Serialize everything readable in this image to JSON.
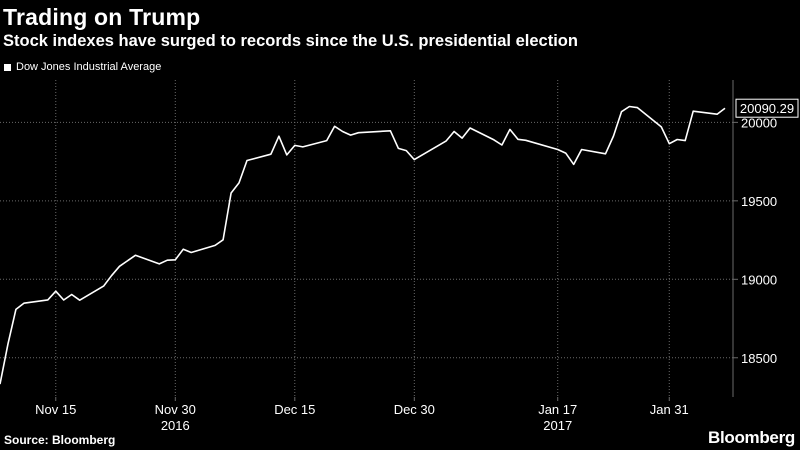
{
  "header": {
    "title": "Trading on Trump",
    "subtitle": "Stock indexes have surged to records since the U.S. presidential election"
  },
  "footer": {
    "source": "Source: Bloomberg",
    "brand": "Bloomberg"
  },
  "colors": {
    "background": "#000000",
    "line": "#ffffff",
    "grid": "#6a6a6a"
  },
  "chart_data": {
    "type": "line",
    "title": "Trading on Trump",
    "subtitle": "Stock indexes have surged to records since the U.S. presidential election",
    "xlabel": "",
    "ylabel": "",
    "grid": true,
    "legend": "top-left",
    "last_value_label": "20090.29",
    "ylim": [
      18250,
      20270
    ],
    "y_ticks": [
      18500,
      19000,
      19500,
      20000
    ],
    "x_ticks": [
      {
        "date": "2016-11-15",
        "label": "Nov 15"
      },
      {
        "date": "2016-11-30",
        "label": "Nov 30"
      },
      {
        "date": "2016-12-15",
        "label": "Dec 15"
      },
      {
        "date": "2016-12-30",
        "label": "Dec 30"
      },
      {
        "date": "2017-01-17",
        "label": "Jan 17"
      },
      {
        "date": "2017-01-31",
        "label": "Jan 31"
      }
    ],
    "year_labels": [
      {
        "date": "2016-11-30",
        "label": "2016"
      },
      {
        "date": "2017-01-17",
        "label": "2017"
      }
    ],
    "x": [
      "2016-11-08",
      "2016-11-09",
      "2016-11-10",
      "2016-11-11",
      "2016-11-14",
      "2016-11-15",
      "2016-11-16",
      "2016-11-17",
      "2016-11-18",
      "2016-11-21",
      "2016-11-22",
      "2016-11-23",
      "2016-11-25",
      "2016-11-28",
      "2016-11-29",
      "2016-11-30",
      "2016-12-01",
      "2016-12-02",
      "2016-12-05",
      "2016-12-06",
      "2016-12-07",
      "2016-12-08",
      "2016-12-09",
      "2016-12-12",
      "2016-12-13",
      "2016-12-14",
      "2016-12-15",
      "2016-12-16",
      "2016-12-19",
      "2016-12-20",
      "2016-12-21",
      "2016-12-22",
      "2016-12-23",
      "2016-12-27",
      "2016-12-28",
      "2016-12-29",
      "2016-12-30",
      "2017-01-03",
      "2017-01-04",
      "2017-01-05",
      "2017-01-06",
      "2017-01-09",
      "2017-01-10",
      "2017-01-11",
      "2017-01-12",
      "2017-01-13",
      "2017-01-17",
      "2017-01-18",
      "2017-01-19",
      "2017-01-20",
      "2017-01-23",
      "2017-01-24",
      "2017-01-25",
      "2017-01-26",
      "2017-01-27",
      "2017-01-30",
      "2017-01-31",
      "2017-02-01",
      "2017-02-02",
      "2017-02-03",
      "2017-02-06",
      "2017-02-07"
    ],
    "series": [
      {
        "name": "Dow Jones Industrial Average",
        "color": "#ffffff",
        "values": [
          18332,
          18589,
          18808,
          18848,
          18869,
          18924,
          18868,
          18903,
          18867,
          18957,
          19023,
          19083,
          19153,
          19098,
          19122,
          19124,
          19192,
          19171,
          19216,
          19252,
          19550,
          19614,
          19757,
          19797,
          19912,
          19793,
          19853,
          19844,
          19884,
          19975,
          19942,
          19919,
          19934,
          19946,
          19834,
          19820,
          19763,
          19882,
          19942,
          19900,
          19964,
          19888,
          19856,
          19955,
          19892,
          19886,
          19827,
          19804,
          19732,
          19827,
          19800,
          19913,
          20068,
          20101,
          20094,
          19971,
          19864,
          19891,
          19884,
          20071,
          20052,
          20090.29
        ]
      }
    ]
  }
}
